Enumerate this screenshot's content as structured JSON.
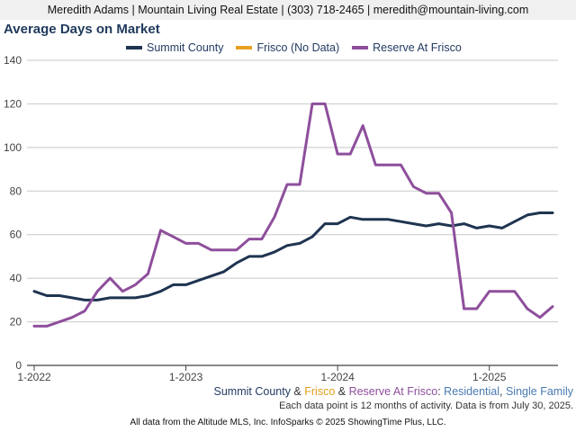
{
  "header": {
    "contact": "Meredith Adams | Mountain Living Real Estate | (303) 718-2465 | meredith@mountain-living.com"
  },
  "caption": {
    "summit": "Summit County",
    "amp1": " & ",
    "frisco": "Frisco",
    "amp2": " & ",
    "reserve": "Reserve At Frisco",
    "colon": ": ",
    "residential": "Residential",
    "comma": ", ",
    "single_family": "Single Family"
  },
  "note": "Each data point is 12 months of activity. Data is from July 30, 2025.",
  "footer": "All data from the Altitude MLS, Inc. InfoSparks © 2025 ShowingTime Plus, LLC.",
  "colors": {
    "summit": "#1f3450",
    "frisco": "#e8a020",
    "reserve": "#8e4f9c",
    "grid": "#c8c8c8",
    "title": "#1f3a5c"
  },
  "chart_data": {
    "type": "line",
    "title": "Average Days on Market",
    "xlabel": "",
    "ylabel": "",
    "ylim": [
      0,
      140
    ],
    "yticks": [
      0,
      20,
      40,
      60,
      80,
      100,
      120,
      140
    ],
    "xticks": [
      "1-2022",
      "1-2023",
      "1-2024",
      "1-2025"
    ],
    "x_start": "2022-01",
    "x_end": "2025-06",
    "grid": true,
    "legend_position": "top",
    "series": [
      {
        "name": "Summit County",
        "color": "#1f3450",
        "values": [
          34,
          32,
          32,
          31,
          30,
          30,
          31,
          31,
          31,
          32,
          34,
          37,
          37,
          39,
          41,
          43,
          47,
          50,
          50,
          52,
          55,
          56,
          59,
          65,
          65,
          68,
          67,
          67,
          67,
          66,
          65,
          64,
          65,
          64,
          65,
          63,
          64,
          63,
          66,
          69,
          70,
          70
        ]
      },
      {
        "name": "Frisco (No Data)",
        "color": "#e8a020",
        "values": []
      },
      {
        "name": "Reserve At Frisco",
        "color": "#8e4f9c",
        "values": [
          18,
          18,
          20,
          22,
          25,
          34,
          40,
          34,
          37,
          42,
          62,
          59,
          56,
          56,
          53,
          53,
          53,
          58,
          58,
          68,
          83,
          83,
          120,
          120,
          97,
          97,
          110,
          92,
          92,
          92,
          82,
          79,
          79,
          70,
          26,
          26,
          34,
          34,
          34,
          26,
          22,
          27
        ]
      }
    ]
  }
}
